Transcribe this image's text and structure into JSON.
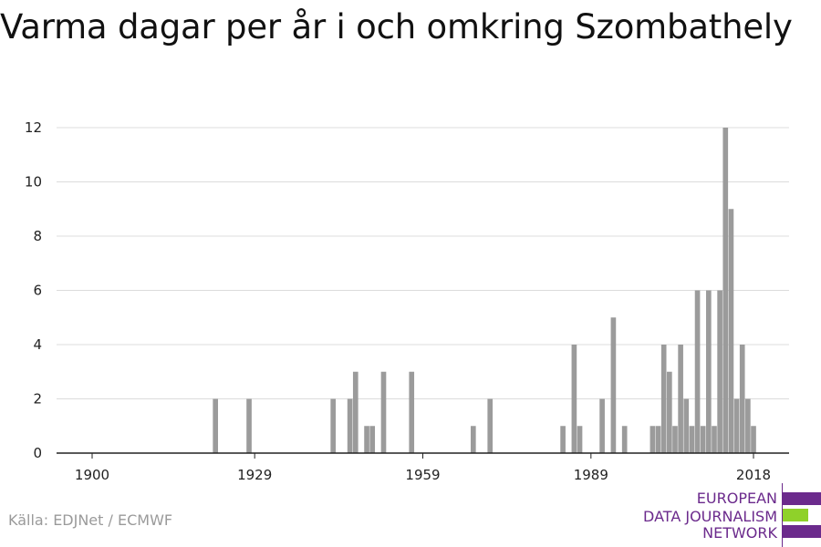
{
  "title": "Varma dagar per år i och omkring Szombathely",
  "source": "Källa: EDJNet / ECMWF",
  "logo": {
    "lines": [
      "EUROPEAN",
      "DATA JOURNALISM",
      "NETWORK"
    ],
    "colors": {
      "purple": "#6b2a8c",
      "green": "#8fd12a"
    }
  },
  "chart_data": {
    "type": "bar",
    "title": "Varma dagar per år i och omkring Szombathely",
    "xlabel": "",
    "ylabel": "",
    "xlim": [
      1900,
      2018
    ],
    "ylim": [
      0,
      12
    ],
    "x_ticks": [
      1900,
      1929,
      1959,
      1989,
      2018
    ],
    "y_ticks": [
      0,
      2,
      4,
      6,
      8,
      10,
      12
    ],
    "grid": true,
    "bar_color": "#9b9b9b",
    "x": [
      1922,
      1928,
      1943,
      1946,
      1947,
      1949,
      1950,
      1952,
      1957,
      1968,
      1971,
      1984,
      1986,
      1987,
      1991,
      1993,
      1995,
      2000,
      2001,
      2002,
      2003,
      2004,
      2005,
      2006,
      2007,
      2008,
      2009,
      2010,
      2011,
      2012,
      2013,
      2014,
      2015,
      2016,
      2017,
      2018
    ],
    "values": [
      2,
      2,
      2,
      2,
      3,
      1,
      1,
      3,
      3,
      1,
      2,
      1,
      4,
      1,
      2,
      5,
      1,
      1,
      1,
      4,
      3,
      1,
      4,
      2,
      1,
      6,
      1,
      6,
      1,
      6,
      12,
      9,
      2,
      4,
      2,
      1
    ]
  }
}
